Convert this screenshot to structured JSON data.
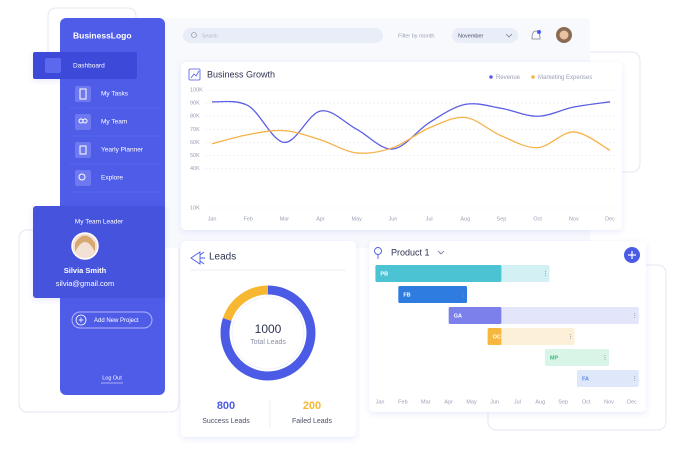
{
  "sidebar": {
    "logo": "BusinessLogo",
    "nav": [
      "Dashboard",
      "My Tasks",
      "My Team",
      "Yearly Planner",
      "Explore"
    ],
    "team_leader": {
      "heading": "My Team Leader",
      "name": "Silvia Smith",
      "email": "silvia@gmail.com"
    },
    "add_project": "Add New Project",
    "logout": "Log Out"
  },
  "header": {
    "search_placeholder": "Search",
    "filter_label": "Filter by month",
    "month": "November"
  },
  "chart_data": [
    {
      "type": "line",
      "title": "Business Growth",
      "categories": [
        "Jan",
        "Feb",
        "Mar",
        "Apr",
        "May",
        "Jun",
        "Jul",
        "Aug",
        "Sep",
        "Oct",
        "Nov",
        "Dec"
      ],
      "series": [
        {
          "name": "Revenue",
          "color": "#5b5fe3",
          "values": [
            91000,
            88000,
            60000,
            84000,
            70000,
            55000,
            75000,
            89000,
            86000,
            80000,
            87000,
            91000
          ]
        },
        {
          "name": "Marketing Expenses",
          "color": "#f7b24a",
          "values": [
            59000,
            66000,
            69000,
            62000,
            52000,
            56000,
            71000,
            79000,
            65000,
            56000,
            68000,
            54000
          ]
        }
      ],
      "ylim": [
        10000,
        100000
      ],
      "yticks": [
        {
          "value": 100000,
          "label": "100K"
        },
        {
          "value": 90000,
          "label": "90K"
        },
        {
          "value": 80000,
          "label": "80K"
        },
        {
          "value": 70000,
          "label": "70K"
        },
        {
          "value": 60000,
          "label": "60K"
        },
        {
          "value": 50000,
          "label": "50K"
        },
        {
          "value": 40000,
          "label": "40K"
        },
        {
          "value": 10000,
          "label": "10K"
        }
      ],
      "grid": true,
      "legend": "top-right"
    },
    {
      "type": "donut",
      "title": "Leads",
      "total": 1000,
      "center_label": "Total Leads",
      "categories": [
        "Success Leads",
        "Failed Leads"
      ],
      "values": [
        800,
        200
      ],
      "colors": [
        "#4b5be6",
        "#f7b731"
      ]
    },
    {
      "type": "gantt",
      "title": "Product 1",
      "categories": [
        "Jan",
        "Feb",
        "Mar",
        "Apr",
        "May",
        "Jun",
        "Jul",
        "Aug",
        "Sep",
        "Oct",
        "Nov",
        "Dec"
      ],
      "tasks": [
        {
          "name": "PB",
          "start": -0.2,
          "end": 7.4,
          "done": 5.3,
          "color": "#4bc3d3",
          "light": "#d3f0f4"
        },
        {
          "name": "FB",
          "start": 0.8,
          "end": 3.8,
          "done": 3.8,
          "color": "#2f7ce0",
          "light": "#d6e6fa"
        },
        {
          "name": "GA",
          "start": 3.0,
          "end": 11.3,
          "done": 5.3,
          "color": "#7c80ea",
          "light": "#e3e6fb"
        },
        {
          "name": "OC",
          "start": 4.7,
          "end": 8.5,
          "done": 5.3,
          "color": "#f6b73e",
          "light": "#fdf0d9"
        },
        {
          "name": "MP",
          "start": 7.2,
          "end": 10.0,
          "done": 7.2,
          "color": "#3dbb80",
          "light": "#d8f5e7"
        },
        {
          "name": "FA",
          "start": 8.6,
          "end": 11.3,
          "done": 8.6,
          "color": "#5b8be0",
          "light": "#dfe8fb"
        }
      ]
    }
  ]
}
